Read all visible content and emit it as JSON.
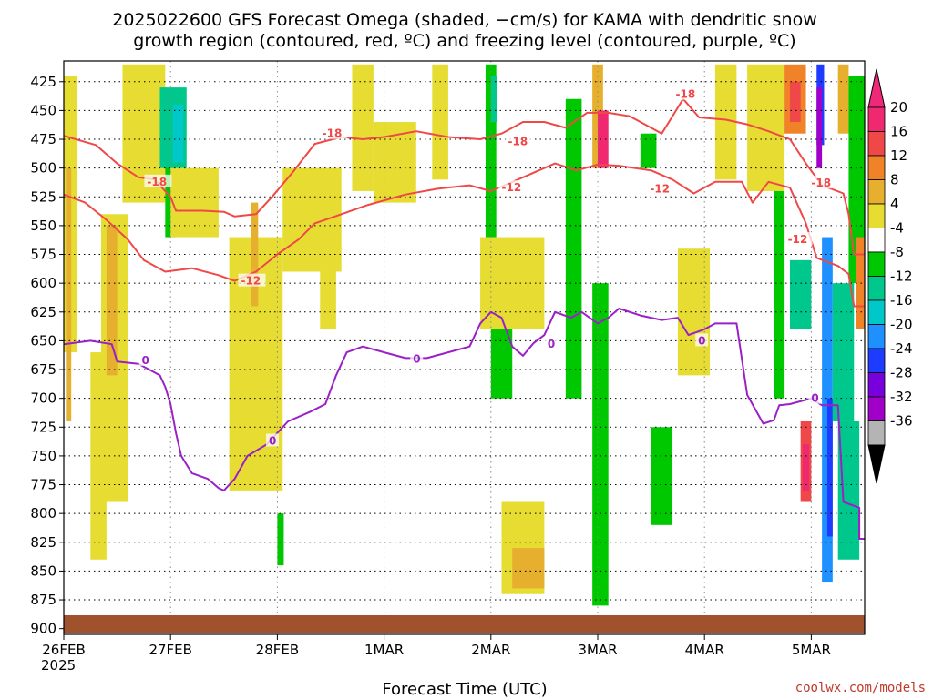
{
  "chart_data": {
    "type": "heatmap",
    "title_lines": [
      "2025022600 GFS Forecast Omega (shaded, −cm/s) for KAMA with dendritic snow",
      "growth region (contoured, red, ºC) and freezing level (contoured, purple, ºC)"
    ],
    "xlabel": "Forecast Time (UTC)",
    "x_ticks": [
      "26FEB",
      "27FEB",
      "28FEB",
      "1MAR",
      "2MAR",
      "3MAR",
      "4MAR",
      "5MAR"
    ],
    "x_year": "2025",
    "y_ticks": [
      425,
      450,
      475,
      500,
      525,
      550,
      575,
      600,
      625,
      650,
      675,
      700,
      725,
      750,
      775,
      800,
      825,
      850,
      875,
      900
    ],
    "y_range": [
      407,
      905
    ],
    "x_range_days": [
      0,
      7.5
    ],
    "colorbar": {
      "labels": [
        20,
        16,
        12,
        8,
        4,
        -4,
        -8,
        -12,
        -16,
        -20,
        -24,
        -28,
        -32,
        -36
      ],
      "colors": [
        "#f02870",
        "#f04848",
        "#f08228",
        "#e6af2d",
        "#e6dc32",
        "#ffffff",
        "#00c800",
        "#00c88c",
        "#00c8c8",
        "#1e90ff",
        "#1e3cff",
        "#7800dc",
        "#a000c8",
        "#b4b4b4"
      ]
    },
    "contour_colors": {
      "dgz": "#f04848",
      "freezing": "#9b20c8",
      "ground": "#a0522d"
    },
    "contours": [
      {
        "label": "-12",
        "labels_at": [
          [
            1.66,
            598
          ],
          [
            4.1,
            517
          ],
          [
            5.49,
            518
          ],
          [
            6.78,
            562
          ]
        ],
        "points": [
          [
            0,
            523
          ],
          [
            0.2,
            530
          ],
          [
            0.4,
            545
          ],
          [
            0.6,
            562
          ],
          [
            0.75,
            580
          ],
          [
            0.95,
            590
          ],
          [
            1.2,
            587
          ],
          [
            1.45,
            593
          ],
          [
            1.6,
            598
          ],
          [
            1.8,
            590
          ],
          [
            2.0,
            575
          ],
          [
            2.2,
            562
          ],
          [
            2.35,
            548
          ],
          [
            2.6,
            540
          ],
          [
            2.85,
            532
          ],
          [
            3.2,
            523
          ],
          [
            3.5,
            518
          ],
          [
            3.8,
            515
          ],
          [
            4.0,
            520
          ],
          [
            4.3,
            508
          ],
          [
            4.6,
            496
          ],
          [
            4.8,
            502
          ],
          [
            5.0,
            497
          ],
          [
            5.2,
            498
          ],
          [
            5.5,
            502
          ],
          [
            5.7,
            510
          ],
          [
            5.9,
            522
          ],
          [
            6.1,
            512
          ],
          [
            6.35,
            512
          ],
          [
            6.45,
            530
          ],
          [
            6.6,
            512
          ],
          [
            6.8,
            517
          ],
          [
            6.95,
            548
          ],
          [
            7.05,
            578
          ],
          [
            7.25,
            585
          ],
          [
            7.35,
            592
          ],
          [
            7.4,
            620
          ],
          [
            7.5,
            620
          ]
        ]
      },
      {
        "label": "-18",
        "labels_at": [
          [
            0.78,
            512
          ],
          [
            2.42,
            470
          ],
          [
            4.16,
            477
          ],
          [
            5.73,
            436
          ],
          [
            7.0,
            513
          ]
        ],
        "points": [
          [
            0,
            472
          ],
          [
            0.3,
            480
          ],
          [
            0.5,
            496
          ],
          [
            0.7,
            508
          ],
          [
            0.85,
            510
          ],
          [
            1.0,
            525
          ],
          [
            1.05,
            537
          ],
          [
            1.3,
            537
          ],
          [
            1.5,
            538
          ],
          [
            1.6,
            542
          ],
          [
            1.8,
            540
          ],
          [
            1.95,
            525
          ],
          [
            2.15,
            503
          ],
          [
            2.35,
            479
          ],
          [
            2.6,
            473
          ],
          [
            2.8,
            475
          ],
          [
            3.0,
            473
          ],
          [
            3.3,
            468
          ],
          [
            3.6,
            473
          ],
          [
            3.9,
            475
          ],
          [
            4.1,
            470
          ],
          [
            4.3,
            460
          ],
          [
            4.5,
            460
          ],
          [
            4.7,
            465
          ],
          [
            4.9,
            452
          ],
          [
            5.1,
            452
          ],
          [
            5.3,
            455
          ],
          [
            5.5,
            465
          ],
          [
            5.6,
            470
          ],
          [
            5.8,
            440
          ],
          [
            5.95,
            456
          ],
          [
            6.2,
            458
          ],
          [
            6.4,
            462
          ],
          [
            6.6,
            468
          ],
          [
            6.8,
            475
          ],
          [
            6.95,
            496
          ],
          [
            7.1,
            515
          ],
          [
            7.3,
            522
          ],
          [
            7.35,
            540
          ],
          [
            7.4,
            575
          ],
          [
            7.5,
            575
          ]
        ]
      },
      {
        "label": "0",
        "labels_at": [
          [
            0.73,
            667
          ],
          [
            1.92,
            737
          ],
          [
            3.27,
            666
          ],
          [
            4.53,
            653
          ],
          [
            5.94,
            650
          ],
          [
            7.0,
            700
          ]
        ],
        "points": [
          [
            0,
            653
          ],
          [
            0.25,
            650
          ],
          [
            0.45,
            653
          ],
          [
            0.5,
            668
          ],
          [
            0.7,
            670
          ],
          [
            0.9,
            680
          ],
          [
            0.95,
            690
          ],
          [
            1.0,
            705
          ],
          [
            1.05,
            730
          ],
          [
            1.1,
            750
          ],
          [
            1.2,
            765
          ],
          [
            1.35,
            770
          ],
          [
            1.45,
            778
          ],
          [
            1.5,
            780
          ],
          [
            1.6,
            770
          ],
          [
            1.72,
            750
          ],
          [
            1.9,
            740
          ],
          [
            2.1,
            720
          ],
          [
            2.3,
            712
          ],
          [
            2.45,
            705
          ],
          [
            2.55,
            680
          ],
          [
            2.65,
            660
          ],
          [
            2.8,
            655
          ],
          [
            3.0,
            660
          ],
          [
            3.2,
            665
          ],
          [
            3.4,
            665
          ],
          [
            3.6,
            660
          ],
          [
            3.8,
            655
          ],
          [
            3.9,
            635
          ],
          [
            4.0,
            625
          ],
          [
            4.1,
            630
          ],
          [
            4.2,
            655
          ],
          [
            4.3,
            663
          ],
          [
            4.4,
            652
          ],
          [
            4.5,
            645
          ],
          [
            4.6,
            625
          ],
          [
            4.75,
            630
          ],
          [
            4.85,
            625
          ],
          [
            5.0,
            635
          ],
          [
            5.1,
            630
          ],
          [
            5.2,
            622
          ],
          [
            5.4,
            628
          ],
          [
            5.6,
            632
          ],
          [
            5.75,
            630
          ],
          [
            5.85,
            645
          ],
          [
            6.0,
            640
          ],
          [
            6.1,
            635
          ],
          [
            6.3,
            635
          ],
          [
            6.4,
            697
          ],
          [
            6.55,
            722
          ],
          [
            6.65,
            719
          ],
          [
            6.7,
            706
          ],
          [
            6.8,
            705
          ],
          [
            7.0,
            700
          ],
          [
            7.1,
            706
          ],
          [
            7.25,
            706
          ],
          [
            7.3,
            790
          ],
          [
            7.45,
            795
          ],
          [
            7.45,
            822
          ],
          [
            7.5,
            822
          ]
        ]
      }
    ],
    "shaded_regions": [
      {
        "value": 4,
        "x": 0.0,
        "x2": 0.12,
        "p": 420,
        "p2": 660
      },
      {
        "value": 8,
        "x": 0.02,
        "x2": 0.07,
        "p": 500,
        "p2": 720
      },
      {
        "value": 4,
        "x": 0.25,
        "x2": 0.4,
        "p": 660,
        "p2": 840
      },
      {
        "value": 4,
        "x": 0.35,
        "x2": 0.6,
        "p": 540,
        "p2": 790
      },
      {
        "value": 8,
        "x": 0.4,
        "x2": 0.5,
        "p": 550,
        "p2": 680
      },
      {
        "value": 4,
        "x": 0.55,
        "x2": 0.95,
        "p": 410,
        "p2": 530
      },
      {
        "value": -8,
        "x": 0.95,
        "x2": 1.05,
        "p": 480,
        "p2": 560
      },
      {
        "value": -12,
        "x": 0.9,
        "x2": 1.15,
        "p": 430,
        "p2": 500
      },
      {
        "value": -16,
        "x": 1.02,
        "x2": 1.12,
        "p": 445,
        "p2": 495
      },
      {
        "value": 4,
        "x": 1.0,
        "x2": 1.45,
        "p": 500,
        "p2": 560
      },
      {
        "value": 4,
        "x": 1.55,
        "x2": 2.05,
        "p": 560,
        "p2": 780
      },
      {
        "value": 8,
        "x": 1.75,
        "x2": 1.82,
        "p": 530,
        "p2": 620
      },
      {
        "value": -8,
        "x": 2.0,
        "x2": 2.06,
        "p": 800,
        "p2": 845
      },
      {
        "value": 4,
        "x": 2.05,
        "x2": 2.6,
        "p": 500,
        "p2": 590
      },
      {
        "value": 4,
        "x": 2.4,
        "x2": 2.55,
        "p": 590,
        "p2": 640
      },
      {
        "value": 4,
        "x": 2.7,
        "x2": 2.9,
        "p": 410,
        "p2": 520
      },
      {
        "value": 4,
        "x": 2.9,
        "x2": 3.3,
        "p": 460,
        "p2": 530
      },
      {
        "value": 4,
        "x": 3.45,
        "x2": 3.6,
        "p": 410,
        "p2": 510
      },
      {
        "value": -8,
        "x": 3.95,
        "x2": 4.05,
        "p": 410,
        "p2": 560
      },
      {
        "value": -12,
        "x": 4.0,
        "x2": 4.06,
        "p": 420,
        "p2": 460
      },
      {
        "value": 4,
        "x": 3.9,
        "x2": 4.5,
        "p": 560,
        "p2": 640
      },
      {
        "value": -8,
        "x": 4.0,
        "x2": 4.2,
        "p": 640,
        "p2": 700
      },
      {
        "value": 4,
        "x": 4.1,
        "x2": 4.5,
        "p": 790,
        "p2": 870
      },
      {
        "value": 8,
        "x": 4.2,
        "x2": 4.5,
        "p": 830,
        "p2": 865
      },
      {
        "value": 8,
        "x": 4.95,
        "x2": 5.05,
        "p": 410,
        "p2": 500
      },
      {
        "value": 20,
        "x": 5.0,
        "x2": 5.1,
        "p": 450,
        "p2": 500
      },
      {
        "value": -8,
        "x": 4.7,
        "x2": 4.85,
        "p": 440,
        "p2": 700
      },
      {
        "value": -8,
        "x": 4.95,
        "x2": 5.1,
        "p": 600,
        "p2": 880
      },
      {
        "value": -8,
        "x": 5.4,
        "x2": 5.55,
        "p": 470,
        "p2": 500
      },
      {
        "value": -8,
        "x": 5.5,
        "x2": 5.7,
        "p": 725,
        "p2": 810
      },
      {
        "value": 4,
        "x": 5.75,
        "x2": 6.05,
        "p": 570,
        "p2": 680
      },
      {
        "value": 4,
        "x": 6.1,
        "x2": 6.3,
        "p": 410,
        "p2": 510
      },
      {
        "value": 4,
        "x": 6.4,
        "x2": 6.75,
        "p": 410,
        "p2": 520
      },
      {
        "value": -8,
        "x": 6.65,
        "x2": 6.75,
        "p": 520,
        "p2": 700
      },
      {
        "value": 12,
        "x": 6.75,
        "x2": 6.95,
        "p": 410,
        "p2": 470
      },
      {
        "value": 16,
        "x": 6.8,
        "x2": 6.9,
        "p": 425,
        "p2": 460
      },
      {
        "value": -12,
        "x": 6.8,
        "x2": 7.0,
        "p": 580,
        "p2": 640
      },
      {
        "value": 16,
        "x": 6.9,
        "x2": 7.0,
        "p": 720,
        "p2": 790
      },
      {
        "value": 20,
        "x": 6.92,
        "x2": 6.98,
        "p": 740,
        "p2": 780
      },
      {
        "value": -24,
        "x": 7.05,
        "x2": 7.12,
        "p": 410,
        "p2": 480
      },
      {
        "value": -32,
        "x": 7.05,
        "x2": 7.1,
        "p": 430,
        "p2": 500
      },
      {
        "value": -20,
        "x": 7.1,
        "x2": 7.2,
        "p": 560,
        "p2": 860
      },
      {
        "value": -24,
        "x": 7.15,
        "x2": 7.2,
        "p": 700,
        "p2": 820
      },
      {
        "value": -12,
        "x": 7.2,
        "x2": 7.4,
        "p": 600,
        "p2": 720
      },
      {
        "value": 8,
        "x": 7.25,
        "x2": 7.35,
        "p": 410,
        "p2": 470
      },
      {
        "value": -8,
        "x": 7.35,
        "x2": 7.5,
        "p": 420,
        "p2": 600
      },
      {
        "value": -12,
        "x": 7.25,
        "x2": 7.45,
        "p": 720,
        "p2": 840
      },
      {
        "value": 12,
        "x": 7.42,
        "x2": 7.5,
        "p": 560,
        "p2": 640
      }
    ]
  },
  "credit": "coolwx.com/models"
}
